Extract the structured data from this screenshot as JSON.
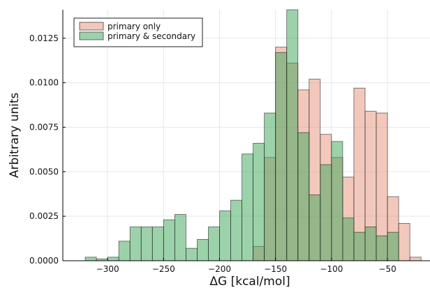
{
  "chart_data": {
    "type": "histogram",
    "xlabel": "ΔG [kcal/mol]",
    "ylabel": "Arbitrary units",
    "xlim": [
      -340,
      -12
    ],
    "ylim": [
      0,
      0.0141
    ],
    "x_ticks": [
      -300,
      -250,
      -200,
      -150,
      -100,
      -50
    ],
    "x_tick_labels": [
      "−300",
      "−250",
      "−200",
      "−150",
      "−100",
      "−50"
    ],
    "y_ticks": [
      0,
      0.0025,
      0.005,
      0.0075,
      0.01,
      0.0125
    ],
    "y_tick_labels": [
      "0.0000",
      "0.0025",
      "0.0050",
      "0.0075",
      "0.0100",
      "0.0125"
    ],
    "grid": true,
    "legend_position": "top-left",
    "series": [
      {
        "name": "primary only",
        "color": "#e8917a",
        "bins": [
          {
            "x0": -170,
            "x1": -160,
            "value": 0.0008
          },
          {
            "x0": -160,
            "x1": -150,
            "value": 0.0058
          },
          {
            "x0": -150,
            "x1": -140,
            "value": 0.012
          },
          {
            "x0": -140,
            "x1": -130,
            "value": 0.0111
          },
          {
            "x0": -130,
            "x1": -120,
            "value": 0.0096
          },
          {
            "x0": -120,
            "x1": -110,
            "value": 0.0102
          },
          {
            "x0": -110,
            "x1": -100,
            "value": 0.0071
          },
          {
            "x0": -100,
            "x1": -90,
            "value": 0.0058
          },
          {
            "x0": -90,
            "x1": -80,
            "value": 0.0047
          },
          {
            "x0": -80,
            "x1": -70,
            "value": 0.0097
          },
          {
            "x0": -70,
            "x1": -60,
            "value": 0.0084
          },
          {
            "x0": -60,
            "x1": -50,
            "value": 0.0083
          },
          {
            "x0": -50,
            "x1": -40,
            "value": 0.0036
          },
          {
            "x0": -40,
            "x1": -30,
            "value": 0.0021
          },
          {
            "x0": -30,
            "x1": -20,
            "value": 0.0002
          }
        ]
      },
      {
        "name": "primary & secondary",
        "color": "#3aa655",
        "bins": [
          {
            "x0": -320,
            "x1": -310,
            "value": 0.0002
          },
          {
            "x0": -310,
            "x1": -300,
            "value": 0.0001
          },
          {
            "x0": -300,
            "x1": -290,
            "value": 0.0002
          },
          {
            "x0": -290,
            "x1": -280,
            "value": 0.0011
          },
          {
            "x0": -280,
            "x1": -270,
            "value": 0.0019
          },
          {
            "x0": -270,
            "x1": -260,
            "value": 0.0019
          },
          {
            "x0": -260,
            "x1": -250,
            "value": 0.0019
          },
          {
            "x0": -250,
            "x1": -240,
            "value": 0.0023
          },
          {
            "x0": -240,
            "x1": -230,
            "value": 0.0026
          },
          {
            "x0": -230,
            "x1": -220,
            "value": 0.0007
          },
          {
            "x0": -220,
            "x1": -210,
            "value": 0.0012
          },
          {
            "x0": -210,
            "x1": -200,
            "value": 0.0019
          },
          {
            "x0": -200,
            "x1": -190,
            "value": 0.0028
          },
          {
            "x0": -190,
            "x1": -180,
            "value": 0.0034
          },
          {
            "x0": -180,
            "x1": -170,
            "value": 0.006
          },
          {
            "x0": -170,
            "x1": -160,
            "value": 0.0066
          },
          {
            "x0": -160,
            "x1": -150,
            "value": 0.0083
          },
          {
            "x0": -150,
            "x1": -140,
            "value": 0.0117
          },
          {
            "x0": -140,
            "x1": -130,
            "value": 0.0141
          },
          {
            "x0": -130,
            "x1": -120,
            "value": 0.0072
          },
          {
            "x0": -120,
            "x1": -110,
            "value": 0.0037
          },
          {
            "x0": -110,
            "x1": -100,
            "value": 0.0054
          },
          {
            "x0": -100,
            "x1": -90,
            "value": 0.0067
          },
          {
            "x0": -90,
            "x1": -80,
            "value": 0.0024
          },
          {
            "x0": -80,
            "x1": -70,
            "value": 0.0016
          },
          {
            "x0": -70,
            "x1": -60,
            "value": 0.0019
          },
          {
            "x0": -60,
            "x1": -50,
            "value": 0.0014
          },
          {
            "x0": -50,
            "x1": -40,
            "value": 0.0016
          }
        ]
      }
    ]
  }
}
